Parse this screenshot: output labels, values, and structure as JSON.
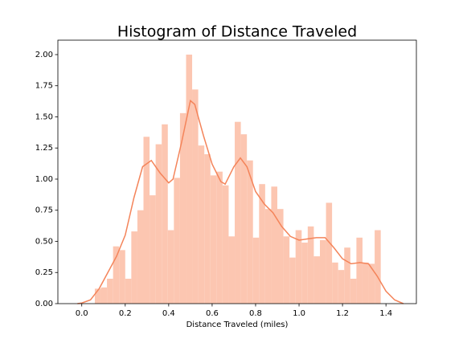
{
  "chart_data": {
    "type": "histogram",
    "title": "Histogram of Distance Traveled",
    "xlabel": "Distance Traveled (miles)",
    "bins": [
      0.06,
      0.088,
      0.116,
      0.144,
      0.172,
      0.2,
      0.228,
      0.256,
      0.284,
      0.312,
      0.34,
      0.368,
      0.396,
      0.424,
      0.452,
      0.48,
      0.508,
      0.536,
      0.564,
      0.592,
      0.62,
      0.648,
      0.676,
      0.704,
      0.732,
      0.76,
      0.788,
      0.816,
      0.844,
      0.872,
      0.9,
      0.928,
      0.956,
      0.984,
      1.012,
      1.04,
      1.068,
      1.096,
      1.124,
      1.152,
      1.18,
      1.208,
      1.236,
      1.264,
      1.292,
      1.32,
      1.348,
      1.376
    ],
    "values": [
      0.12,
      0.13,
      0.2,
      0.46,
      0.43,
      0.2,
      0.58,
      0.75,
      1.34,
      0.87,
      1.28,
      1.44,
      0.59,
      1.01,
      1.53,
      2.0,
      1.72,
      1.27,
      1.2,
      1.03,
      1.06,
      0.95,
      0.54,
      1.46,
      1.36,
      1.15,
      0.53,
      0.96,
      0.76,
      0.94,
      0.76,
      0.54,
      0.37,
      0.59,
      0.49,
      0.62,
      0.38,
      0.51,
      0.81,
      0.33,
      0.27,
      0.45,
      0.2,
      0.53,
      0.33,
      0.32,
      0.59
    ],
    "color": "#fcc6b1",
    "kde": {
      "color": "#f4845a",
      "x": [
        -0.02,
        0.0,
        0.04,
        0.08,
        0.12,
        0.16,
        0.2,
        0.24,
        0.28,
        0.32,
        0.36,
        0.4,
        0.42,
        0.46,
        0.5,
        0.52,
        0.56,
        0.6,
        0.64,
        0.66,
        0.7,
        0.73,
        0.76,
        0.8,
        0.84,
        0.88,
        0.92,
        0.96,
        1.0,
        1.04,
        1.08,
        1.12,
        1.16,
        1.2,
        1.24,
        1.28,
        1.32,
        1.36,
        1.4,
        1.44,
        1.48
      ],
      "y": [
        0.0,
        0.005,
        0.03,
        0.12,
        0.25,
        0.38,
        0.55,
        0.85,
        1.1,
        1.15,
        1.05,
        0.97,
        1.0,
        1.3,
        1.63,
        1.6,
        1.35,
        1.12,
        0.98,
        0.96,
        1.1,
        1.17,
        1.1,
        0.9,
        0.8,
        0.73,
        0.62,
        0.54,
        0.51,
        0.52,
        0.53,
        0.53,
        0.45,
        0.36,
        0.32,
        0.33,
        0.32,
        0.22,
        0.1,
        0.03,
        0.0
      ]
    },
    "xlim": [
      -0.11,
      1.54
    ],
    "ylim": [
      0,
      2.116
    ],
    "xticks": [
      {
        "value": 0,
        "label": "0.0"
      },
      0.2,
      0.4,
      0.6,
      0.8,
      {
        "value": 1,
        "label": "1.0"
      },
      1.2,
      1.4
    ],
    "yticks": [
      {
        "value": 0,
        "label": "0.00"
      },
      {
        "value": 0.25,
        "label": "0.25"
      },
      {
        "value": 0.5,
        "label": "0.50"
      },
      {
        "value": 0.75,
        "label": "0.75"
      },
      {
        "value": 1,
        "label": "1.00"
      },
      {
        "value": 1.25,
        "label": "1.25"
      },
      {
        "value": 1.5,
        "label": "1.50"
      },
      {
        "value": 1.75,
        "label": "1.75"
      },
      {
        "value": 2,
        "label": "2.00"
      }
    ],
    "grid": false
  }
}
